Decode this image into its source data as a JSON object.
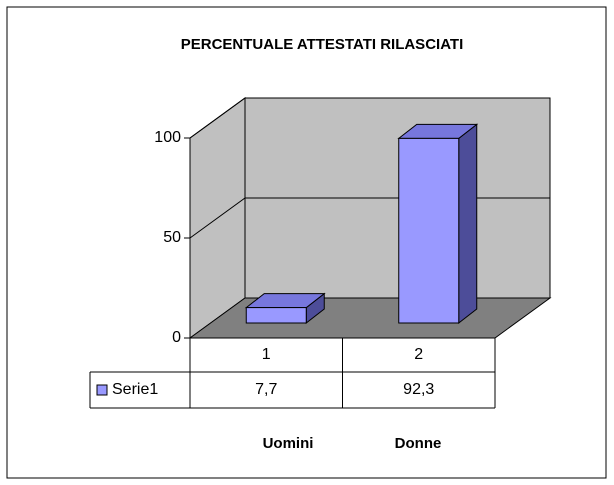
{
  "chart_data": {
    "type": "bar3d",
    "title": "PERCENTUALE ATTESTATI RILASCIATI",
    "categories": [
      "1",
      "2"
    ],
    "series": [
      {
        "name": "Serie1",
        "color": "#9999ff",
        "values": [
          7.7,
          92.3
        ],
        "value_labels": [
          "7,7",
          "92,3"
        ]
      }
    ],
    "category_names": [
      "Uomini",
      "Donne"
    ],
    "ylim": [
      0,
      100
    ],
    "yticks": [
      0,
      50,
      100
    ],
    "grid": true,
    "data_table": true
  }
}
